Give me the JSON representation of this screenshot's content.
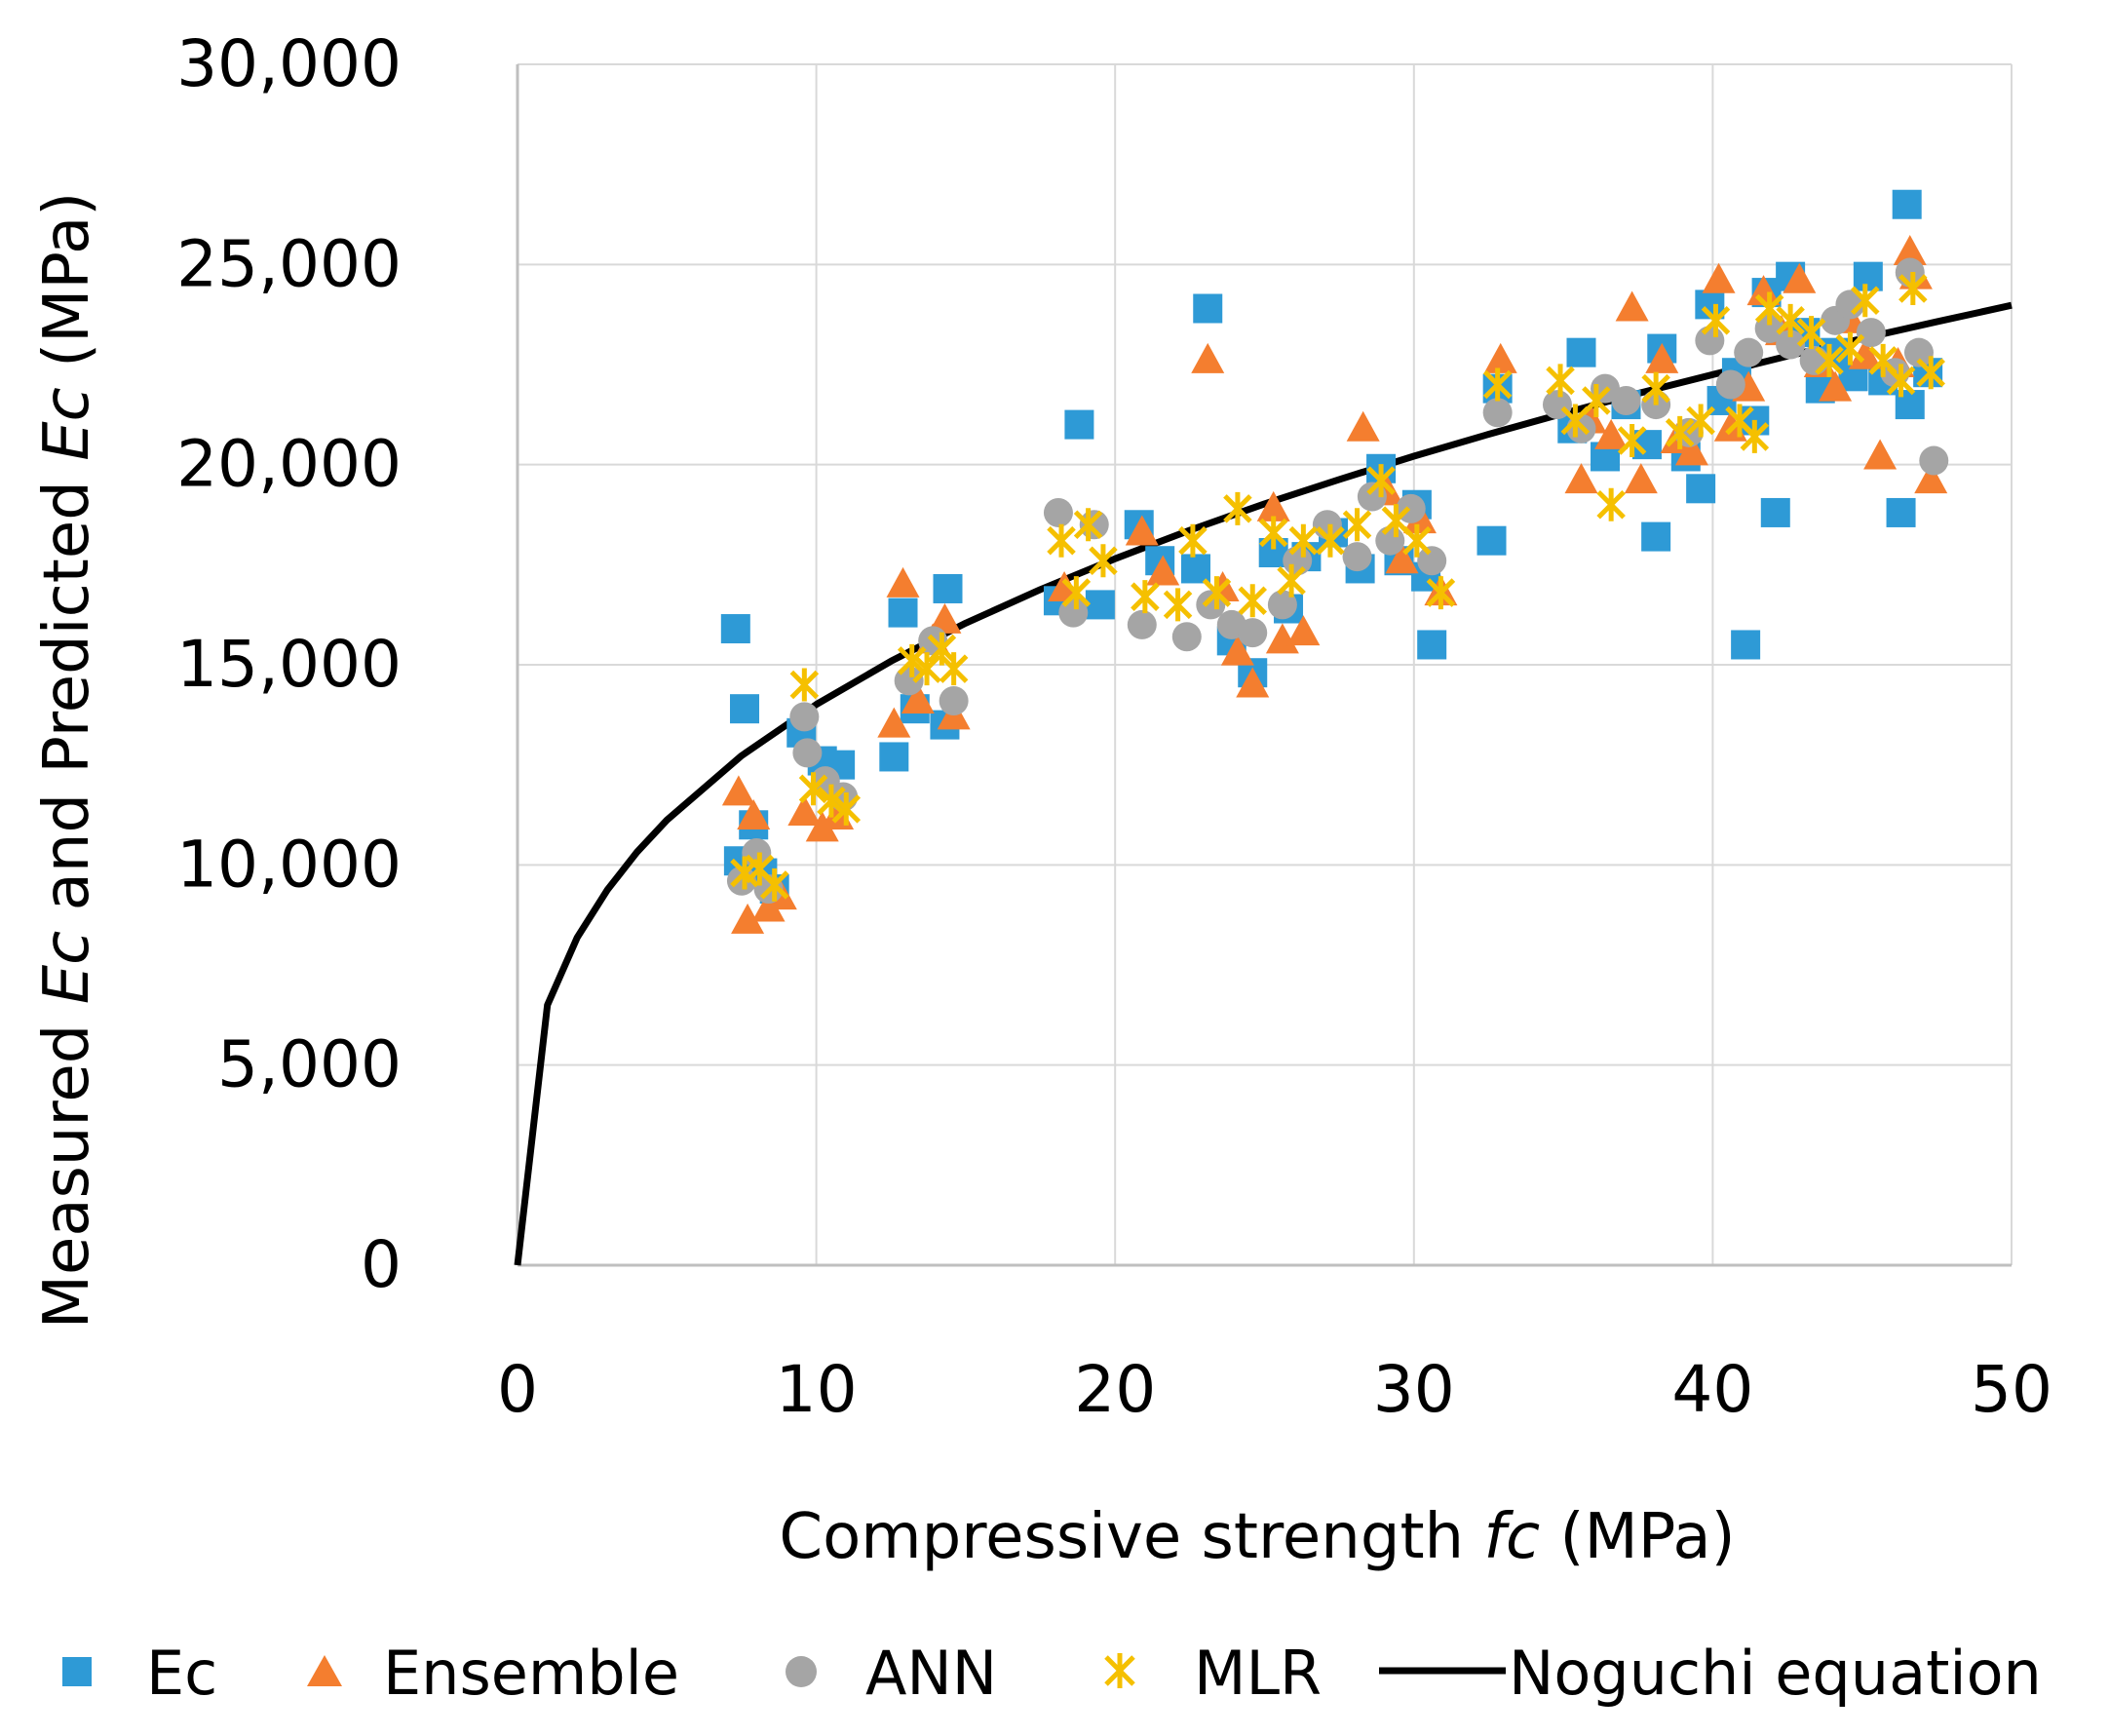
{
  "colors": {
    "ec": "#2E9AD6",
    "ensemble": "#F47E2F",
    "ann": "#A5A5A5",
    "mlr": "#F5C000",
    "noguchi": "#000000",
    "grid": "#D9D9D9",
    "axis": "#BFBFBF"
  },
  "chart_data": {
    "type": "scatter",
    "title": "",
    "xlabel": {
      "prefix": "Compressive strength ",
      "symbol": "fc",
      "suffix": " (MPa)"
    },
    "ylabel": {
      "part1": "Measured ",
      "symbol1": "Ec",
      "part2": " and Predicted ",
      "symbol2": "Ec",
      "part3": " (MPa)"
    },
    "xlim": [
      0,
      50
    ],
    "ylim": [
      0,
      30000
    ],
    "xticks": [
      0,
      10,
      20,
      30,
      40,
      50
    ],
    "xtick_labels": [
      "0",
      "10",
      "20",
      "30",
      "40",
      "50"
    ],
    "yticks": [
      0,
      5000,
      10000,
      15000,
      20000,
      25000,
      30000
    ],
    "ytick_labels": [
      "0",
      "5,000",
      "10,000",
      "15,000",
      "20,000",
      "25,000",
      "30,000"
    ],
    "grid": true,
    "legend_position": "bottom",
    "series": [
      {
        "name": "Ec",
        "marker": "square",
        "points": [
          [
            7.3,
            15900
          ],
          [
            7.6,
            13900
          ],
          [
            7.4,
            10100
          ],
          [
            7.9,
            11000
          ],
          [
            8.2,
            9800
          ],
          [
            8.6,
            9400
          ],
          [
            9.5,
            13300
          ],
          [
            10.2,
            12600
          ],
          [
            10.8,
            12500
          ],
          [
            12.6,
            12700
          ],
          [
            12.9,
            16300
          ],
          [
            13.3,
            13900
          ],
          [
            14.4,
            16900
          ],
          [
            14.3,
            13500
          ],
          [
            18.1,
            16600
          ],
          [
            18.8,
            21000
          ],
          [
            19.5,
            16500
          ],
          [
            20.8,
            18500
          ],
          [
            21.5,
            17600
          ],
          [
            23.1,
            23900
          ],
          [
            22.7,
            17400
          ],
          [
            23.9,
            15600
          ],
          [
            24.6,
            14800
          ],
          [
            25.3,
            17800
          ],
          [
            25.8,
            16400
          ],
          [
            26.4,
            17700
          ],
          [
            27.3,
            18300
          ],
          [
            28.2,
            17400
          ],
          [
            28.9,
            19900
          ],
          [
            29.5,
            17600
          ],
          [
            30.1,
            19000
          ],
          [
            30.6,
            15500
          ],
          [
            30.4,
            17200
          ],
          [
            32.6,
            18100
          ],
          [
            32.8,
            21900
          ],
          [
            35.3,
            20900
          ],
          [
            35.6,
            22800
          ],
          [
            36.4,
            20200
          ],
          [
            37.1,
            21500
          ],
          [
            37.8,
            20500
          ],
          [
            38.1,
            18200
          ],
          [
            38.3,
            22900
          ],
          [
            39.1,
            20200
          ],
          [
            39.6,
            19400
          ],
          [
            39.9,
            24000
          ],
          [
            40.3,
            21600
          ],
          [
            40.8,
            22300
          ],
          [
            41.1,
            15500
          ],
          [
            41.4,
            21100
          ],
          [
            41.8,
            24300
          ],
          [
            42.1,
            18800
          ],
          [
            42.6,
            24700
          ],
          [
            43.1,
            23300
          ],
          [
            43.6,
            21900
          ],
          [
            44.1,
            22800
          ],
          [
            44.7,
            22200
          ],
          [
            45.2,
            24700
          ],
          [
            45.7,
            22100
          ],
          [
            46.3,
            18800
          ],
          [
            46.5,
            26500
          ],
          [
            46.6,
            21500
          ],
          [
            47.2,
            22300
          ]
        ]
      },
      {
        "name": "Ensemble",
        "marker": "triangle",
        "points": [
          [
            7.4,
            11800
          ],
          [
            7.7,
            8600
          ],
          [
            7.9,
            11200
          ],
          [
            8.4,
            8900
          ],
          [
            8.8,
            9200
          ],
          [
            9.6,
            11300
          ],
          [
            10.2,
            10900
          ],
          [
            10.7,
            11200
          ],
          [
            12.6,
            13500
          ],
          [
            12.9,
            17000
          ],
          [
            13.4,
            14100
          ],
          [
            13.9,
            15600
          ],
          [
            14.6,
            13700
          ],
          [
            14.3,
            16100
          ],
          [
            18.3,
            16900
          ],
          [
            20.9,
            18300
          ],
          [
            21.6,
            17300
          ],
          [
            23.1,
            22600
          ],
          [
            23.6,
            16900
          ],
          [
            24.1,
            15300
          ],
          [
            24.6,
            14500
          ],
          [
            25.3,
            18900
          ],
          [
            25.6,
            15600
          ],
          [
            26.3,
            15800
          ],
          [
            28.3,
            20900
          ],
          [
            29.1,
            19300
          ],
          [
            29.6,
            17600
          ],
          [
            30.2,
            18600
          ],
          [
            30.9,
            16800
          ],
          [
            32.9,
            22600
          ],
          [
            35.6,
            19600
          ],
          [
            35.9,
            21100
          ],
          [
            36.6,
            20700
          ],
          [
            37.3,
            23900
          ],
          [
            37.6,
            19600
          ],
          [
            38.3,
            22600
          ],
          [
            38.8,
            20600
          ],
          [
            39.3,
            20300
          ],
          [
            40.2,
            24600
          ],
          [
            40.6,
            20900
          ],
          [
            41.2,
            21900
          ],
          [
            41.7,
            24300
          ],
          [
            42.3,
            23300
          ],
          [
            42.9,
            24600
          ],
          [
            43.6,
            22500
          ],
          [
            44.1,
            21900
          ],
          [
            44.6,
            23600
          ],
          [
            45.1,
            22700
          ],
          [
            45.6,
            20200
          ],
          [
            46.2,
            22500
          ],
          [
            46.6,
            25300
          ],
          [
            46.8,
            24700
          ],
          [
            47.3,
            19600
          ]
        ]
      },
      {
        "name": "ANN",
        "marker": "circle",
        "points": [
          [
            7.5,
            9600
          ],
          [
            8.0,
            10300
          ],
          [
            8.4,
            9400
          ],
          [
            9.6,
            13700
          ],
          [
            9.7,
            12800
          ],
          [
            10.3,
            12100
          ],
          [
            10.9,
            11700
          ],
          [
            13.1,
            14600
          ],
          [
            13.9,
            15600
          ],
          [
            14.6,
            14100
          ],
          [
            18.1,
            18800
          ],
          [
            18.6,
            16300
          ],
          [
            19.3,
            18500
          ],
          [
            20.9,
            16000
          ],
          [
            22.4,
            15700
          ],
          [
            23.2,
            16500
          ],
          [
            23.9,
            16000
          ],
          [
            24.6,
            15800
          ],
          [
            25.6,
            16500
          ],
          [
            26.1,
            17600
          ],
          [
            27.1,
            18500
          ],
          [
            28.1,
            17700
          ],
          [
            28.6,
            19200
          ],
          [
            29.2,
            18100
          ],
          [
            29.9,
            18900
          ],
          [
            30.6,
            17600
          ],
          [
            32.8,
            21300
          ],
          [
            34.8,
            21500
          ],
          [
            35.6,
            20900
          ],
          [
            36.4,
            21900
          ],
          [
            37.1,
            21600
          ],
          [
            38.1,
            21500
          ],
          [
            39.2,
            20800
          ],
          [
            39.9,
            23100
          ],
          [
            40.6,
            22000
          ],
          [
            41.2,
            22800
          ],
          [
            41.9,
            23400
          ],
          [
            42.6,
            23000
          ],
          [
            43.4,
            22600
          ],
          [
            44.1,
            23600
          ],
          [
            44.6,
            24000
          ],
          [
            45.3,
            23300
          ],
          [
            46.1,
            22300
          ],
          [
            46.6,
            24800
          ],
          [
            46.9,
            22800
          ],
          [
            47.4,
            20100
          ]
        ]
      },
      {
        "name": "MLR",
        "marker": "x",
        "points": [
          [
            7.6,
            9800
          ],
          [
            8.1,
            9900
          ],
          [
            8.6,
            9500
          ],
          [
            9.6,
            14500
          ],
          [
            9.9,
            11900
          ],
          [
            10.5,
            11600
          ],
          [
            11.0,
            11400
          ],
          [
            13.2,
            15100
          ],
          [
            13.7,
            14900
          ],
          [
            14.2,
            15400
          ],
          [
            14.6,
            14900
          ],
          [
            18.2,
            18100
          ],
          [
            18.7,
            16800
          ],
          [
            19.1,
            18500
          ],
          [
            19.6,
            17600
          ],
          [
            21.0,
            16700
          ],
          [
            22.1,
            16500
          ],
          [
            22.6,
            18100
          ],
          [
            23.4,
            16800
          ],
          [
            24.1,
            18900
          ],
          [
            24.6,
            16600
          ],
          [
            25.3,
            18300
          ],
          [
            25.9,
            17100
          ],
          [
            26.3,
            18100
          ],
          [
            27.2,
            18100
          ],
          [
            28.1,
            18500
          ],
          [
            28.9,
            19600
          ],
          [
            29.4,
            18600
          ],
          [
            30.1,
            18100
          ],
          [
            30.9,
            16800
          ],
          [
            32.8,
            22000
          ],
          [
            34.9,
            22100
          ],
          [
            35.4,
            21100
          ],
          [
            36.1,
            21600
          ],
          [
            36.6,
            19000
          ],
          [
            37.3,
            20600
          ],
          [
            38.1,
            21900
          ],
          [
            38.9,
            20800
          ],
          [
            39.6,
            21100
          ],
          [
            40.1,
            23600
          ],
          [
            40.9,
            21100
          ],
          [
            41.4,
            20700
          ],
          [
            41.9,
            23900
          ],
          [
            42.6,
            23600
          ],
          [
            43.3,
            23300
          ],
          [
            43.9,
            22600
          ],
          [
            44.6,
            22900
          ],
          [
            45.1,
            24100
          ],
          [
            45.7,
            22600
          ],
          [
            46.3,
            22100
          ],
          [
            46.7,
            24400
          ],
          [
            47.3,
            22300
          ]
        ]
      },
      {
        "name": "Noguchi equation",
        "marker": "line",
        "x": [
          0,
          1,
          2,
          3,
          4,
          5,
          7.5,
          10,
          12.5,
          15,
          17.5,
          20,
          22.5,
          25,
          27.5,
          30,
          32.5,
          35,
          37.5,
          40,
          42.5,
          45,
          47.5,
          50
        ],
        "y": [
          0,
          6500,
          8190,
          9370,
          10320,
          11120,
          12730,
          14010,
          15090,
          16040,
          16880,
          17650,
          18360,
          19020,
          19630,
          20210,
          20760,
          21280,
          21780,
          22250,
          22710,
          23150,
          23570,
          23980
        ]
      }
    ]
  },
  "legend": {
    "items": [
      {
        "label": "Ec"
      },
      {
        "label": "Ensemble"
      },
      {
        "label": "ANN"
      },
      {
        "label": "MLR"
      },
      {
        "label": "Noguchi equation"
      }
    ]
  }
}
